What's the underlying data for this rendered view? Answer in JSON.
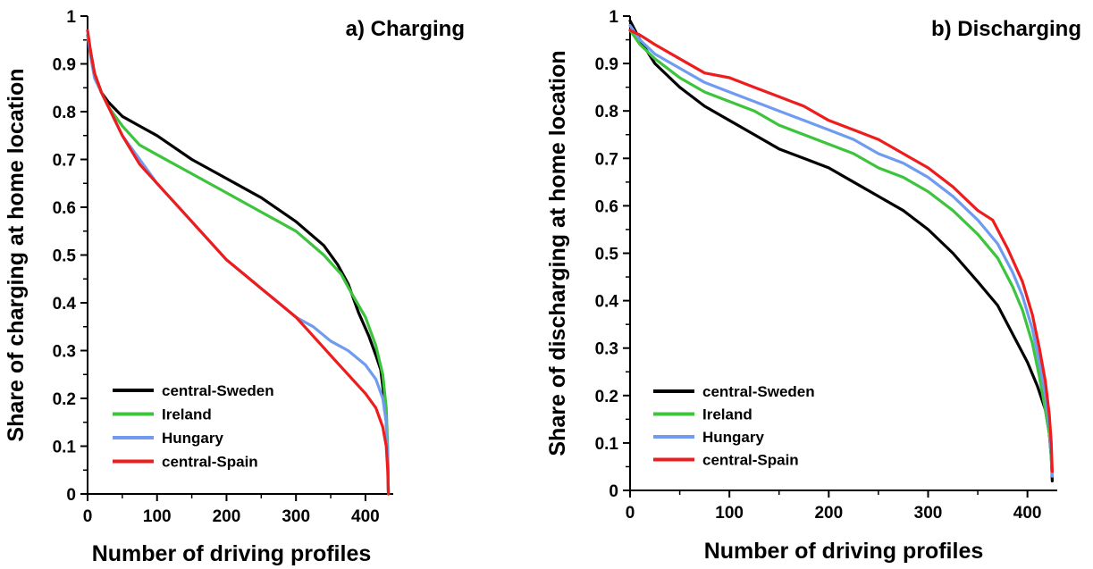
{
  "colors": {
    "central_sweden": "#000000",
    "ireland": "#3cc43c",
    "hungary": "#6f9cf0",
    "central_spain": "#ee1c1c"
  },
  "chart_data": [
    {
      "type": "line",
      "title": "a) Charging",
      "xlabel": "Number of driving profiles",
      "ylabel": "Share of charging at home location",
      "xlim": [
        0,
        440
      ],
      "ylim": [
        0,
        1
      ],
      "xticks": [
        "0",
        "100",
        "200",
        "300",
        "400"
      ],
      "yticks": [
        "0",
        "0.1",
        "0.2",
        "0.3",
        "0.4",
        "0.5",
        "0.6",
        "0.7",
        "0.8",
        "0.9",
        "1"
      ],
      "grid": false,
      "legend_position": "bottom-left",
      "series": [
        {
          "name": "central-Sweden",
          "color": "#000000",
          "points": [
            [
              0,
              0.96
            ],
            [
              5,
              0.92
            ],
            [
              10,
              0.88
            ],
            [
              20,
              0.84
            ],
            [
              30,
              0.82
            ],
            [
              50,
              0.79
            ],
            [
              75,
              0.77
            ],
            [
              100,
              0.75
            ],
            [
              150,
              0.7
            ],
            [
              200,
              0.66
            ],
            [
              250,
              0.62
            ],
            [
              300,
              0.57
            ],
            [
              340,
              0.52
            ],
            [
              360,
              0.48
            ],
            [
              375,
              0.44
            ],
            [
              390,
              0.38
            ],
            [
              405,
              0.33
            ],
            [
              415,
              0.29
            ],
            [
              422,
              0.26
            ],
            [
              427,
              0.2
            ],
            [
              430,
              0.15
            ],
            [
              432,
              0.08
            ],
            [
              433,
              0.0
            ]
          ]
        },
        {
          "name": "Ireland",
          "color": "#3cc43c",
          "points": [
            [
              0,
              0.96
            ],
            [
              5,
              0.92
            ],
            [
              10,
              0.88
            ],
            [
              20,
              0.84
            ],
            [
              30,
              0.81
            ],
            [
              50,
              0.77
            ],
            [
              75,
              0.73
            ],
            [
              100,
              0.71
            ],
            [
              150,
              0.67
            ],
            [
              200,
              0.63
            ],
            [
              250,
              0.59
            ],
            [
              300,
              0.55
            ],
            [
              340,
              0.5
            ],
            [
              365,
              0.46
            ],
            [
              380,
              0.42
            ],
            [
              400,
              0.37
            ],
            [
              415,
              0.31
            ],
            [
              425,
              0.25
            ],
            [
              430,
              0.18
            ],
            [
              432,
              0.1
            ],
            [
              433,
              0.0
            ]
          ]
        },
        {
          "name": "Hungary",
          "color": "#6f9cf0",
          "points": [
            [
              0,
              0.96
            ],
            [
              5,
              0.91
            ],
            [
              10,
              0.87
            ],
            [
              20,
              0.84
            ],
            [
              30,
              0.81
            ],
            [
              50,
              0.75
            ],
            [
              75,
              0.7
            ],
            [
              100,
              0.65
            ],
            [
              125,
              0.61
            ],
            [
              150,
              0.57
            ],
            [
              175,
              0.53
            ],
            [
              200,
              0.49
            ],
            [
              225,
              0.46
            ],
            [
              250,
              0.43
            ],
            [
              275,
              0.4
            ],
            [
              300,
              0.37
            ],
            [
              325,
              0.35
            ],
            [
              350,
              0.32
            ],
            [
              375,
              0.3
            ],
            [
              400,
              0.27
            ],
            [
              415,
              0.24
            ],
            [
              425,
              0.2
            ],
            [
              430,
              0.15
            ],
            [
              432,
              0.07
            ],
            [
              433,
              0.0
            ]
          ]
        },
        {
          "name": "central-Spain",
          "color": "#ee1c1c",
          "points": [
            [
              0,
              0.97
            ],
            [
              5,
              0.92
            ],
            [
              10,
              0.88
            ],
            [
              20,
              0.84
            ],
            [
              30,
              0.81
            ],
            [
              50,
              0.75
            ],
            [
              75,
              0.69
            ],
            [
              100,
              0.65
            ],
            [
              125,
              0.61
            ],
            [
              150,
              0.57
            ],
            [
              175,
              0.53
            ],
            [
              200,
              0.49
            ],
            [
              225,
              0.46
            ],
            [
              250,
              0.43
            ],
            [
              275,
              0.4
            ],
            [
              300,
              0.37
            ],
            [
              325,
              0.33
            ],
            [
              350,
              0.29
            ],
            [
              375,
              0.25
            ],
            [
              400,
              0.21
            ],
            [
              415,
              0.18
            ],
            [
              425,
              0.14
            ],
            [
              430,
              0.1
            ],
            [
              432,
              0.05
            ],
            [
              433,
              0.0
            ]
          ]
        }
      ]
    },
    {
      "type": "line",
      "title": "b) Discharging",
      "xlabel": "Number of driving profiles",
      "ylabel": "Share of discharging at home location",
      "xlim": [
        0,
        430
      ],
      "ylim": [
        0,
        1
      ],
      "xticks": [
        "0",
        "100",
        "200",
        "300",
        "400"
      ],
      "yticks": [
        "0",
        "0.1",
        "0.2",
        "0.3",
        "0.4",
        "0.5",
        "0.6",
        "0.7",
        "0.8",
        "0.9",
        "1"
      ],
      "grid": false,
      "legend_position": "bottom-left",
      "series": [
        {
          "name": "central-Sweden",
          "color": "#000000",
          "points": [
            [
              0,
              0.99
            ],
            [
              10,
              0.95
            ],
            [
              25,
              0.9
            ],
            [
              50,
              0.85
            ],
            [
              75,
              0.81
            ],
            [
              100,
              0.78
            ],
            [
              125,
              0.75
            ],
            [
              150,
              0.72
            ],
            [
              175,
              0.7
            ],
            [
              200,
              0.68
            ],
            [
              225,
              0.65
            ],
            [
              250,
              0.62
            ],
            [
              275,
              0.59
            ],
            [
              300,
              0.55
            ],
            [
              325,
              0.5
            ],
            [
              350,
              0.44
            ],
            [
              370,
              0.39
            ],
            [
              385,
              0.33
            ],
            [
              400,
              0.27
            ],
            [
              410,
              0.22
            ],
            [
              418,
              0.17
            ],
            [
              422,
              0.12
            ],
            [
              424,
              0.07
            ],
            [
              425,
              0.02
            ]
          ]
        },
        {
          "name": "Ireland",
          "color": "#3cc43c",
          "points": [
            [
              0,
              0.97
            ],
            [
              10,
              0.94
            ],
            [
              25,
              0.91
            ],
            [
              50,
              0.87
            ],
            [
              75,
              0.84
            ],
            [
              100,
              0.82
            ],
            [
              125,
              0.8
            ],
            [
              150,
              0.77
            ],
            [
              175,
              0.75
            ],
            [
              200,
              0.73
            ],
            [
              225,
              0.71
            ],
            [
              250,
              0.68
            ],
            [
              275,
              0.66
            ],
            [
              300,
              0.63
            ],
            [
              325,
              0.59
            ],
            [
              350,
              0.54
            ],
            [
              370,
              0.49
            ],
            [
              385,
              0.43
            ],
            [
              395,
              0.38
            ],
            [
              405,
              0.31
            ],
            [
              412,
              0.24
            ],
            [
              418,
              0.17
            ],
            [
              422,
              0.12
            ],
            [
              424,
              0.07
            ],
            [
              425,
              0.03
            ]
          ]
        },
        {
          "name": "Hungary",
          "color": "#6f9cf0",
          "points": [
            [
              0,
              0.98
            ],
            [
              10,
              0.95
            ],
            [
              25,
              0.92
            ],
            [
              50,
              0.89
            ],
            [
              75,
              0.86
            ],
            [
              100,
              0.84
            ],
            [
              125,
              0.82
            ],
            [
              150,
              0.8
            ],
            [
              175,
              0.78
            ],
            [
              200,
              0.76
            ],
            [
              225,
              0.74
            ],
            [
              250,
              0.71
            ],
            [
              275,
              0.69
            ],
            [
              300,
              0.66
            ],
            [
              325,
              0.62
            ],
            [
              350,
              0.57
            ],
            [
              370,
              0.52
            ],
            [
              385,
              0.46
            ],
            [
              395,
              0.41
            ],
            [
              405,
              0.34
            ],
            [
              412,
              0.27
            ],
            [
              418,
              0.2
            ],
            [
              422,
              0.14
            ],
            [
              424,
              0.08
            ],
            [
              425,
              0.03
            ]
          ]
        },
        {
          "name": "central-Spain",
          "color": "#ee1c1c",
          "points": [
            [
              0,
              0.97
            ],
            [
              10,
              0.96
            ],
            [
              25,
              0.94
            ],
            [
              50,
              0.91
            ],
            [
              75,
              0.88
            ],
            [
              100,
              0.87
            ],
            [
              125,
              0.85
            ],
            [
              150,
              0.83
            ],
            [
              175,
              0.81
            ],
            [
              200,
              0.78
            ],
            [
              225,
              0.76
            ],
            [
              250,
              0.74
            ],
            [
              275,
              0.71
            ],
            [
              300,
              0.68
            ],
            [
              325,
              0.64
            ],
            [
              350,
              0.59
            ],
            [
              365,
              0.57
            ],
            [
              380,
              0.51
            ],
            [
              395,
              0.44
            ],
            [
              405,
              0.37
            ],
            [
              412,
              0.3
            ],
            [
              418,
              0.23
            ],
            [
              422,
              0.16
            ],
            [
              424,
              0.1
            ],
            [
              425,
              0.04
            ]
          ]
        }
      ]
    }
  ]
}
